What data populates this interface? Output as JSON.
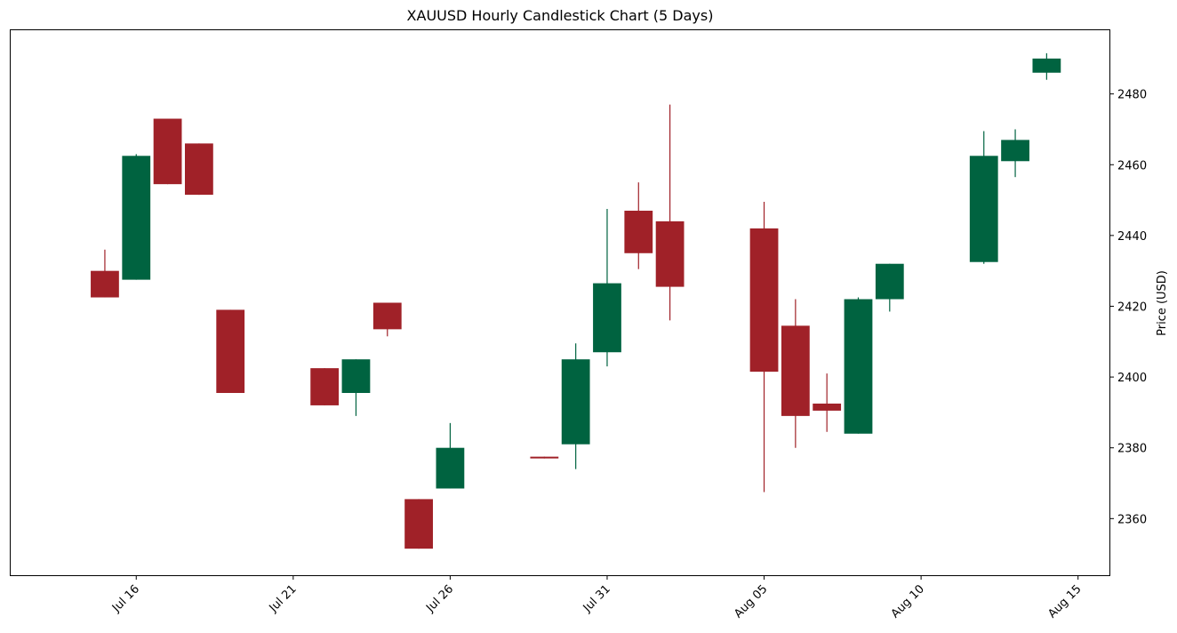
{
  "chart_data": {
    "type": "candlestick",
    "title": "XAUUSD Hourly Candlestick Chart (5 Days)",
    "xlabel": "",
    "ylabel": "Price (USD)",
    "y_axis_side": "right",
    "grid": false,
    "legend": "none",
    "xlim": [
      "2024-07-12",
      "2024-08-16"
    ],
    "ylim": [
      2344,
      2498
    ],
    "x_ticks": [
      {
        "date": "2024-07-16",
        "label": "Jul 16"
      },
      {
        "date": "2024-07-21",
        "label": "Jul 21"
      },
      {
        "date": "2024-07-26",
        "label": "Jul 26"
      },
      {
        "date": "2024-07-31",
        "label": "Jul 31"
      },
      {
        "date": "2024-08-05",
        "label": "Aug 05"
      },
      {
        "date": "2024-08-10",
        "label": "Aug 10"
      },
      {
        "date": "2024-08-15",
        "label": "Aug 15"
      }
    ],
    "y_ticks": [
      2360,
      2380,
      2400,
      2420,
      2440,
      2460,
      2480
    ],
    "colors": {
      "up": "#006340",
      "down": "#a02128"
    },
    "candles": [
      {
        "date": "2024-07-15",
        "open": 2430.0,
        "high": 2436.0,
        "low": 2422.5,
        "close": 2422.5
      },
      {
        "date": "2024-07-16",
        "open": 2427.5,
        "high": 2463.0,
        "low": 2427.5,
        "close": 2462.5
      },
      {
        "date": "2024-07-17",
        "open": 2473.0,
        "high": 2473.0,
        "low": 2454.5,
        "close": 2454.5
      },
      {
        "date": "2024-07-18",
        "open": 2466.0,
        "high": 2466.0,
        "low": 2451.5,
        "close": 2451.5
      },
      {
        "date": "2024-07-19",
        "open": 2419.0,
        "high": 2419.0,
        "low": 2395.5,
        "close": 2395.5
      },
      {
        "date": "2024-07-22",
        "open": 2402.5,
        "high": 2402.5,
        "low": 2392.0,
        "close": 2392.0
      },
      {
        "date": "2024-07-23",
        "open": 2395.5,
        "high": 2405.0,
        "low": 2389.0,
        "close": 2405.0
      },
      {
        "date": "2024-07-24",
        "open": 2421.0,
        "high": 2421.0,
        "low": 2411.5,
        "close": 2413.5
      },
      {
        "date": "2024-07-25",
        "open": 2365.5,
        "high": 2365.5,
        "low": 2351.5,
        "close": 2351.5
      },
      {
        "date": "2024-07-26",
        "open": 2368.5,
        "high": 2387.0,
        "low": 2368.5,
        "close": 2380.0
      },
      {
        "date": "2024-07-29",
        "open": 2377.5,
        "high": 2377.5,
        "low": 2377.0,
        "close": 2377.0
      },
      {
        "date": "2024-07-30",
        "open": 2381.0,
        "high": 2409.5,
        "low": 2374.0,
        "close": 2405.0
      },
      {
        "date": "2024-07-31",
        "open": 2407.0,
        "high": 2447.5,
        "low": 2403.0,
        "close": 2426.5
      },
      {
        "date": "2024-08-01",
        "open": 2447.0,
        "high": 2455.0,
        "low": 2430.5,
        "close": 2435.0
      },
      {
        "date": "2024-08-02",
        "open": 2444.0,
        "high": 2477.0,
        "low": 2416.0,
        "close": 2425.5
      },
      {
        "date": "2024-08-05",
        "open": 2442.0,
        "high": 2449.5,
        "low": 2367.5,
        "close": 2401.5
      },
      {
        "date": "2024-08-06",
        "open": 2414.5,
        "high": 2422.0,
        "low": 2380.0,
        "close": 2389.0
      },
      {
        "date": "2024-08-07",
        "open": 2392.5,
        "high": 2401.0,
        "low": 2384.5,
        "close": 2390.5
      },
      {
        "date": "2024-08-08",
        "open": 2384.0,
        "high": 2422.5,
        "low": 2384.0,
        "close": 2422.0
      },
      {
        "date": "2024-08-09",
        "open": 2422.0,
        "high": 2432.0,
        "low": 2418.5,
        "close": 2432.0
      },
      {
        "date": "2024-08-12",
        "open": 2432.5,
        "high": 2469.5,
        "low": 2432.0,
        "close": 2462.5
      },
      {
        "date": "2024-08-13",
        "open": 2461.0,
        "high": 2470.0,
        "low": 2456.5,
        "close": 2467.0
      },
      {
        "date": "2024-08-14",
        "open": 2486.0,
        "high": 2491.5,
        "low": 2484.0,
        "close": 2490.0
      }
    ]
  }
}
